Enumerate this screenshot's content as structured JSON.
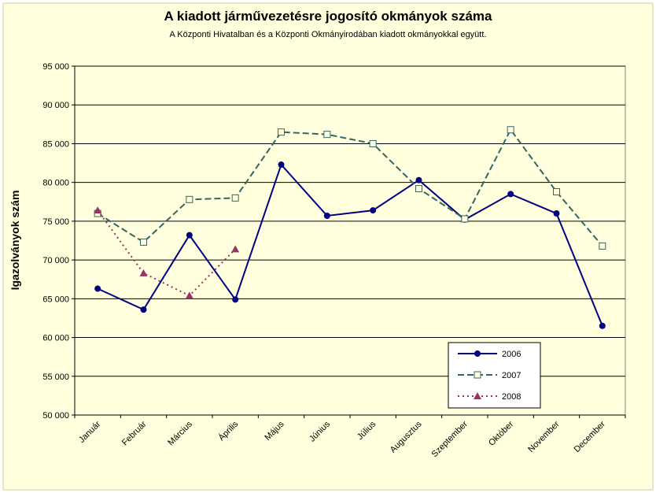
{
  "chart_data": {
    "type": "line",
    "title": "A  kiadott járművezetésre  jogosító okmányok száma",
    "subtitle": "A  Központi Hivatalban és a Központi Okmányirodában kiadott okmányokkal együtt.",
    "y_label": "Igazolványok szám",
    "categories": [
      "Január",
      "Február",
      "Március",
      "Április",
      "Május",
      "Június",
      "Július",
      "Augusztus",
      "Szeptember",
      "Október",
      "November",
      "December"
    ],
    "series": [
      {
        "name": "2006",
        "color": "#000080",
        "dash": "none",
        "marker": "circle",
        "values": [
          66300,
          63600,
          73200,
          64900,
          82300,
          75700,
          76400,
          80300,
          75200,
          78500,
          76000,
          61500
        ]
      },
      {
        "name": "2007",
        "color": "#336666",
        "dash": "8 4",
        "marker": "square",
        "values": [
          76000,
          72300,
          77800,
          78000,
          86500,
          86200,
          85000,
          79200,
          75300,
          86800,
          78800,
          71800
        ]
      },
      {
        "name": "2008",
        "color": "#993366",
        "dash": "2 4",
        "marker": "triangle",
        "values": [
          76400,
          68300,
          65400,
          71400,
          null,
          null,
          null,
          null,
          null,
          null,
          null,
          null
        ]
      }
    ],
    "ylim": [
      50000,
      95000
    ],
    "yticks": [
      {
        "value": 50000,
        "label": "50 000"
      },
      {
        "value": 55000,
        "label": "55 000"
      },
      {
        "value": 60000,
        "label": "60 000"
      },
      {
        "value": 65000,
        "label": "65 000"
      },
      {
        "value": 70000,
        "label": "70 000"
      },
      {
        "value": 75000,
        "label": "75 000"
      },
      {
        "value": 80000,
        "label": "80 000"
      },
      {
        "value": 85000,
        "label": "85 000"
      },
      {
        "value": 90000,
        "label": "90 000"
      },
      {
        "value": 95000,
        "label": "95 000"
      }
    ],
    "grid": true,
    "legend": "lower-right"
  }
}
